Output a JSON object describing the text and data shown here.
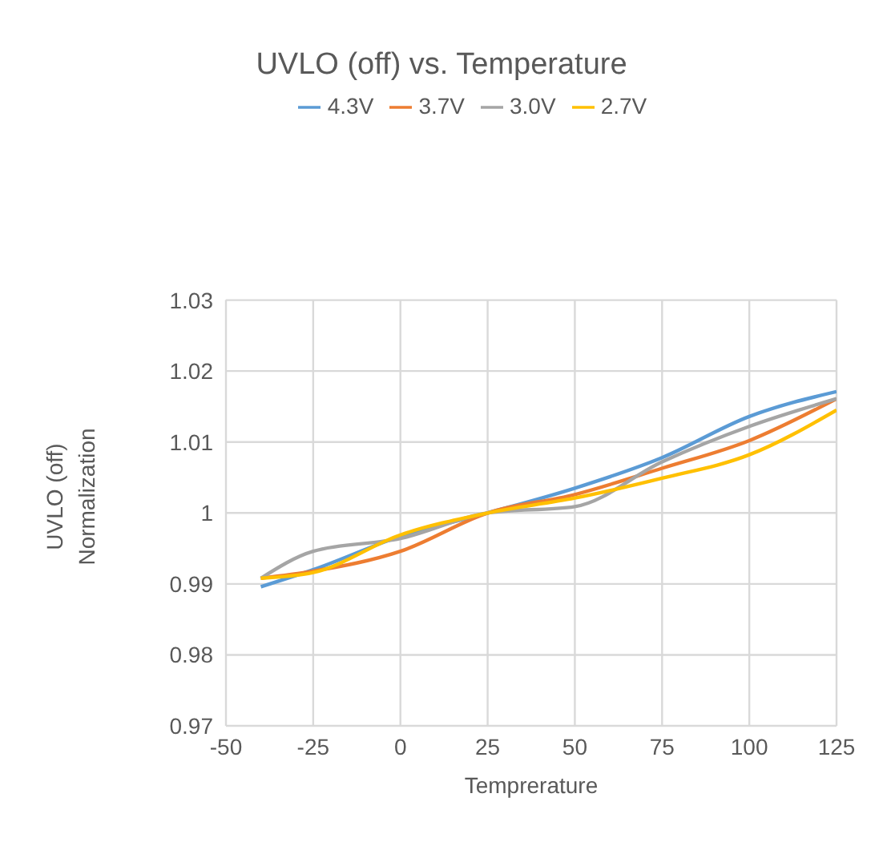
{
  "chart_data": {
    "type": "line",
    "title": "UVLO (off) vs. Temperature",
    "xlabel": "Temprerature",
    "ylabel": "UVLO (off) Normalization",
    "x": [
      -40,
      -25,
      0,
      25,
      50,
      75,
      100,
      125
    ],
    "series": [
      {
        "name": "4.3V",
        "color": "#5b9bd5",
        "values": [
          0.9896,
          0.992,
          0.9967,
          1.0,
          1.0035,
          1.0078,
          1.0136,
          1.0171
        ]
      },
      {
        "name": "3.7V",
        "color": "#ed7d31",
        "values": [
          0.9908,
          0.9918,
          0.9946,
          1.0,
          1.0026,
          1.0063,
          1.0102,
          1.0161
        ]
      },
      {
        "name": "3.0V",
        "color": "#a5a5a5",
        "values": [
          0.9908,
          0.9946,
          0.9964,
          1.0,
          1.0009,
          1.0072,
          1.0122,
          1.0161
        ]
      },
      {
        "name": "2.7V",
        "color": "#ffc000",
        "values": [
          0.9908,
          0.9916,
          0.9969,
          1.0,
          1.0021,
          1.0049,
          1.0082,
          1.0145
        ]
      }
    ],
    "xlim": [
      -50,
      125
    ],
    "xticks": [
      -50,
      -25,
      0,
      25,
      50,
      75,
      100,
      125
    ],
    "ylim": [
      0.97,
      1.03
    ],
    "yticks": [
      0.97,
      0.98,
      0.99,
      1,
      1.01,
      1.02,
      1.03
    ],
    "grid": true,
    "legend": "top",
    "marker": "none",
    "line_style": "solid"
  }
}
